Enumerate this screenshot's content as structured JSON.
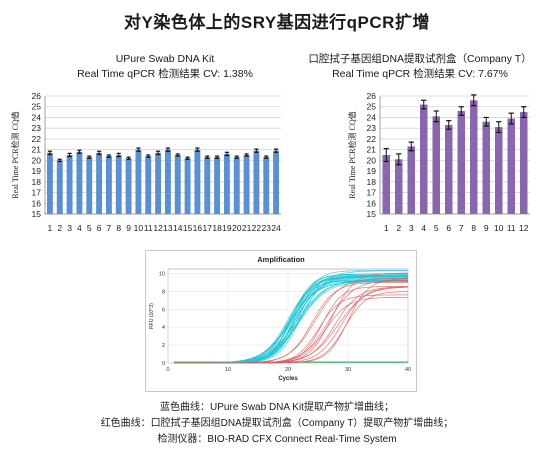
{
  "page": {
    "title": "对Y染色体上的SRY基因进行qPCR扩增",
    "captions": [
      "蓝色曲线：UPure Swab DNA Kit提取产物扩增曲线；",
      "红色曲线：口腔拭子基因组DNA提取试剂盒（Company T）提取产物扩增曲线；",
      "检测仪器：BIO-RAD CFX Connect Real-Time System"
    ]
  },
  "chart_data": [
    {
      "type": "bar",
      "title_lines": [
        "UPure Swab DNA Kit",
        "Real Time qPCR 检测结果 CV: 1.38%"
      ],
      "ylabel": "Real Time PCR检测 CQ值",
      "xlabel": "",
      "ylim": [
        15,
        26
      ],
      "yticks": [
        15,
        16,
        17,
        18,
        19,
        20,
        21,
        22,
        23,
        24,
        25,
        26
      ],
      "categories": [
        "1",
        "2",
        "3",
        "4",
        "5",
        "6",
        "7",
        "8",
        "9",
        "10",
        "11",
        "12",
        "13",
        "14",
        "15",
        "16",
        "17",
        "18",
        "19",
        "20",
        "21",
        "22",
        "23",
        "24"
      ],
      "values": [
        20.7,
        20.0,
        20.5,
        20.8,
        20.3,
        20.7,
        20.4,
        20.5,
        20.2,
        21.0,
        20.4,
        20.7,
        21.0,
        20.5,
        20.2,
        21.0,
        20.3,
        20.3,
        20.6,
        20.3,
        20.5,
        20.9,
        20.3,
        20.9
      ],
      "errors": [
        0.15,
        0.1,
        0.15,
        0.15,
        0.1,
        0.15,
        0.1,
        0.15,
        0.1,
        0.15,
        0.1,
        0.15,
        0.15,
        0.1,
        0.1,
        0.15,
        0.1,
        0.1,
        0.15,
        0.1,
        0.1,
        0.15,
        0.1,
        0.15
      ],
      "color": "#5b8fd0",
      "grid": true
    },
    {
      "type": "bar",
      "title_lines": [
        "口腔拭子基因组DNA提取试剂盒（Company T）",
        "Real Time qPCR 检测结果 CV: 7.67%"
      ],
      "ylabel": "Real Time PCR检测 CQ值",
      "xlabel": "",
      "ylim": [
        15,
        26
      ],
      "yticks": [
        15,
        16,
        17,
        18,
        19,
        20,
        21,
        22,
        23,
        24,
        25,
        26
      ],
      "categories": [
        "1",
        "2",
        "3",
        "4",
        "5",
        "6",
        "7",
        "8",
        "9",
        "10",
        "11",
        "12"
      ],
      "values": [
        20.5,
        20.1,
        21.3,
        25.2,
        24.1,
        23.3,
        24.6,
        25.6,
        23.6,
        23.1,
        23.9,
        24.5
      ],
      "errors": [
        0.6,
        0.5,
        0.4,
        0.4,
        0.5,
        0.4,
        0.4,
        0.5,
        0.4,
        0.5,
        0.5,
        0.5
      ],
      "color": "#8a67ad",
      "grid": true
    },
    {
      "type": "line",
      "title": "Amplification",
      "xlabel": "Cycles",
      "ylabel": "RFU (10^3)",
      "xlim": [
        0,
        40
      ],
      "ylim": [
        0,
        10.5
      ],
      "xticks": [
        0,
        10,
        20,
        30,
        40
      ],
      "yticks": [
        0,
        2,
        4,
        6,
        8,
        10
      ],
      "series": [
        {
          "color": "#22c5d6",
          "count": 24,
          "ct_range": [
            20,
            22
          ],
          "plateau_range": [
            9.0,
            10.4
          ]
        },
        {
          "color": "#d96060",
          "count": 12,
          "ct_range": [
            24,
            30
          ],
          "plateau_range": [
            7.2,
            10.2
          ]
        }
      ],
      "baseline_color": "#3cb371"
    }
  ]
}
